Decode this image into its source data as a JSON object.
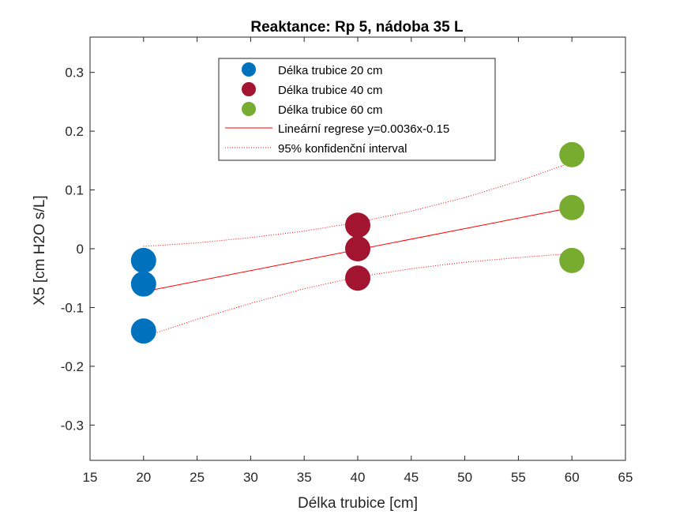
{
  "chart_data": {
    "type": "scatter",
    "title": "Reaktance: Rp 5, nádoba 35 L",
    "xlabel": "Délka trubice [cm]",
    "ylabel": "X5 [cm H2O s/L]",
    "xlim": [
      15,
      65
    ],
    "ylim": [
      -0.36,
      0.36
    ],
    "xticks": [
      15,
      20,
      25,
      30,
      35,
      40,
      45,
      50,
      55,
      60,
      65
    ],
    "yticks": [
      -0.3,
      -0.2,
      -0.1,
      0,
      0.1,
      0.2,
      0.3
    ],
    "xtick_labels": [
      "15",
      "20",
      "25",
      "30",
      "35",
      "40",
      "45",
      "50",
      "55",
      "60",
      "65"
    ],
    "ytick_labels": [
      "-0.3",
      "-0.2",
      "-0.1",
      "0",
      "0.1",
      "0.2",
      "0.3"
    ],
    "grid": false,
    "legend_position": "top-center",
    "series": [
      {
        "name": "Délka trubice 20 cm",
        "color": "#0072BD",
        "x": [
          20,
          20,
          20
        ],
        "y": [
          -0.02,
          -0.06,
          -0.14
        ]
      },
      {
        "name": "Délka trubice 40 cm",
        "color": "#A2142F",
        "x": [
          40,
          40,
          40
        ],
        "y": [
          0.04,
          0.0,
          -0.05
        ]
      },
      {
        "name": "Délka trubice 60 cm",
        "color": "#77AC30",
        "x": [
          60,
          60,
          60
        ],
        "y": [
          0.16,
          0.07,
          -0.02
        ]
      }
    ],
    "regression": {
      "name": "Lineární regrese y=0.0036x-0.15",
      "color": "#FF0000",
      "x": [
        20,
        60
      ],
      "y": [
        -0.073,
        0.07
      ]
    },
    "confidence_interval": {
      "name": "95% konfidenční interval",
      "color": "#FF0000",
      "x": [
        20,
        25,
        30,
        35,
        40,
        45,
        50,
        55,
        60
      ],
      "upper": [
        0.004,
        0.01,
        0.019,
        0.03,
        0.045,
        0.064,
        0.087,
        0.115,
        0.147
      ],
      "lower": [
        -0.15,
        -0.12,
        -0.093,
        -0.068,
        -0.048,
        -0.034,
        -0.023,
        -0.015,
        -0.008
      ]
    }
  }
}
